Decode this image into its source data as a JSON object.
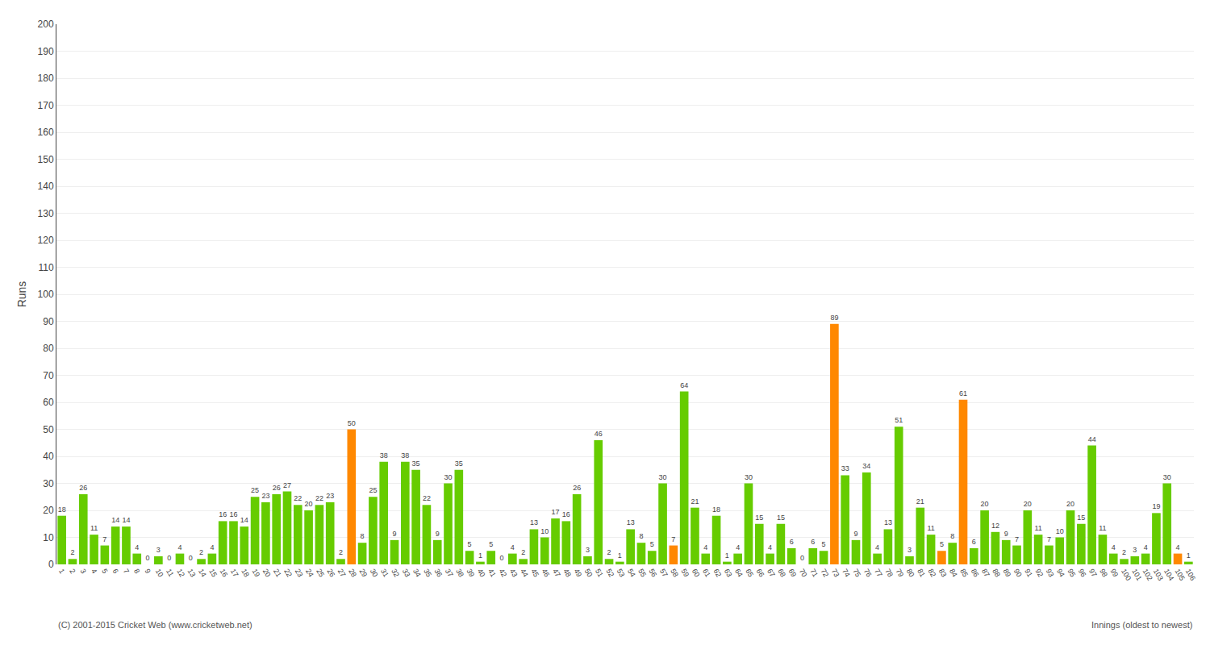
{
  "chart_data": {
    "type": "bar",
    "ylabel": "Runs",
    "annotations": [
      "(C) 2001-2015 Cricket Web (www.cricketweb.net)",
      "Innings (oldest to newest)"
    ],
    "categories": [
      "1",
      "2",
      "3",
      "4",
      "5",
      "6",
      "7",
      "8",
      "9",
      "10",
      "11",
      "12",
      "13",
      "14",
      "15",
      "16",
      "17",
      "18",
      "19",
      "20",
      "21",
      "22",
      "23",
      "24",
      "25",
      "26",
      "27",
      "28",
      "29",
      "30",
      "31",
      "32",
      "33",
      "34",
      "35",
      "36",
      "37",
      "38",
      "39",
      "40",
      "41",
      "42",
      "43",
      "44",
      "45",
      "46",
      "47",
      "48",
      "49",
      "50",
      "51",
      "52",
      "53",
      "54",
      "55",
      "56",
      "57",
      "58",
      "59",
      "60",
      "61",
      "62",
      "63",
      "64",
      "65",
      "66",
      "67",
      "68",
      "69",
      "70",
      "71",
      "72",
      "73",
      "74",
      "75",
      "76",
      "77",
      "78",
      "79",
      "80",
      "81",
      "82",
      "83",
      "84",
      "85",
      "86",
      "87",
      "88",
      "89",
      "90",
      "91",
      "92",
      "93",
      "94",
      "95",
      "96",
      "97",
      "98",
      "99",
      "100",
      "101",
      "102",
      "103",
      "104",
      "105",
      "106"
    ],
    "values": [
      18,
      2,
      26,
      11,
      7,
      14,
      14,
      4,
      0,
      3,
      0,
      4,
      0,
      2,
      4,
      16,
      16,
      14,
      25,
      23,
      26,
      27,
      22,
      20,
      22,
      23,
      2,
      50,
      8,
      25,
      38,
      9,
      38,
      35,
      22,
      9,
      30,
      35,
      5,
      1,
      5,
      0,
      4,
      2,
      13,
      10,
      17,
      16,
      26,
      3,
      46,
      2,
      1,
      13,
      8,
      5,
      30,
      7,
      64,
      21,
      4,
      18,
      1,
      4,
      30,
      15,
      4,
      15,
      6,
      0,
      6,
      5,
      89,
      33,
      9,
      34,
      4,
      13,
      51,
      3,
      21,
      11,
      5,
      8,
      61,
      6,
      20,
      12,
      9,
      7,
      20,
      11,
      7,
      10,
      20,
      15,
      44,
      11,
      4,
      2,
      3,
      4,
      19,
      30,
      4,
      1
    ],
    "colors": [
      "#66cc00",
      "#66cc00",
      "#66cc00",
      "#66cc00",
      "#66cc00",
      "#66cc00",
      "#66cc00",
      "#66cc00",
      "#66cc00",
      "#66cc00",
      "#66cc00",
      "#66cc00",
      "#66cc00",
      "#66cc00",
      "#66cc00",
      "#66cc00",
      "#66cc00",
      "#66cc00",
      "#66cc00",
      "#66cc00",
      "#66cc00",
      "#66cc00",
      "#66cc00",
      "#66cc00",
      "#66cc00",
      "#66cc00",
      "#66cc00",
      "#ff8800",
      "#66cc00",
      "#66cc00",
      "#66cc00",
      "#66cc00",
      "#66cc00",
      "#66cc00",
      "#66cc00",
      "#66cc00",
      "#66cc00",
      "#66cc00",
      "#66cc00",
      "#66cc00",
      "#66cc00",
      "#66cc00",
      "#66cc00",
      "#66cc00",
      "#66cc00",
      "#66cc00",
      "#66cc00",
      "#66cc00",
      "#66cc00",
      "#66cc00",
      "#66cc00",
      "#66cc00",
      "#66cc00",
      "#66cc00",
      "#66cc00",
      "#66cc00",
      "#66cc00",
      "#ff8800",
      "#66cc00",
      "#66cc00",
      "#66cc00",
      "#66cc00",
      "#66cc00",
      "#66cc00",
      "#66cc00",
      "#66cc00",
      "#66cc00",
      "#66cc00",
      "#66cc00",
      "#66cc00",
      "#66cc00",
      "#66cc00",
      "#ff8800",
      "#66cc00",
      "#66cc00",
      "#66cc00",
      "#66cc00",
      "#66cc00",
      "#66cc00",
      "#66cc00",
      "#66cc00",
      "#66cc00",
      "#ff8800",
      "#66cc00",
      "#ff8800",
      "#66cc00",
      "#66cc00",
      "#66cc00",
      "#66cc00",
      "#66cc00",
      "#66cc00",
      "#66cc00",
      "#66cc00",
      "#66cc00",
      "#66cc00",
      "#66cc00",
      "#66cc00",
      "#66cc00",
      "#66cc00",
      "#66cc00",
      "#66cc00",
      "#66cc00",
      "#66cc00",
      "#66cc00",
      "#ff8800",
      "#66cc00"
    ],
    "ylim": [
      0,
      200
    ],
    "yticks": [
      0,
      10,
      20,
      30,
      40,
      50,
      60,
      70,
      80,
      90,
      100,
      110,
      120,
      130,
      140,
      150,
      160,
      170,
      180,
      190,
      200
    ],
    "grid": true,
    "data_labels": true
  }
}
